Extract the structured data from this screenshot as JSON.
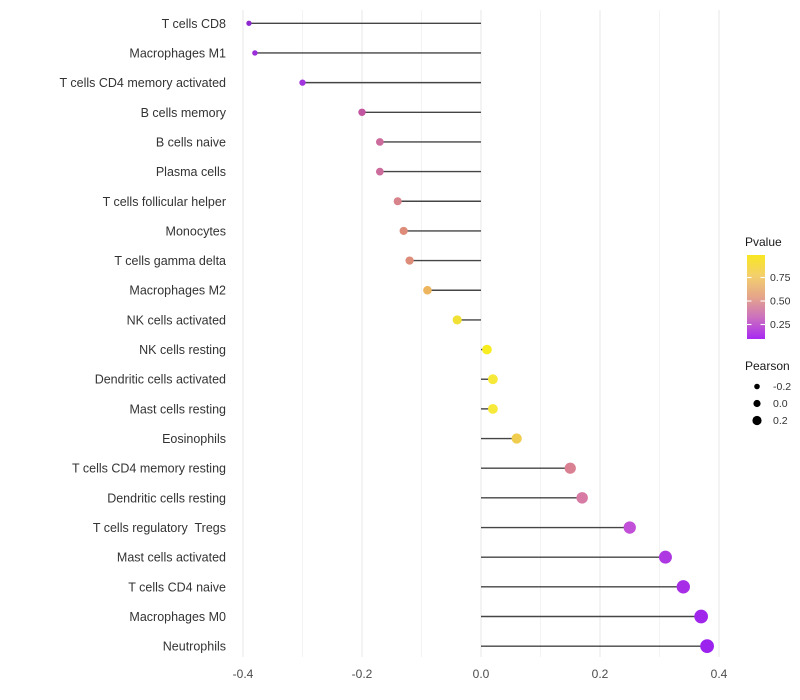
{
  "chart_data": {
    "type": "scatter",
    "variant": "lollipop",
    "orientation": "horizontal",
    "title": "",
    "xlabel": "",
    "ylabel": "",
    "xlim": [
      -0.45,
      0.44
    ],
    "x_ticks": [
      -0.4,
      -0.2,
      0.0,
      0.2,
      0.4
    ],
    "x_tick_labels": [
      "-0.4",
      "-0.2",
      "0.0",
      "0.2",
      "0.4"
    ],
    "x_minor_step": 0.1,
    "grid": true,
    "points": [
      {
        "label": "T cells CD8",
        "pearson": -0.39,
        "color": "#8f28cf"
      },
      {
        "label": "Macrophages M1",
        "pearson": -0.38,
        "color": "#9a2ed8"
      },
      {
        "label": "T cells CD4 memory activated",
        "pearson": -0.3,
        "color": "#a335de"
      },
      {
        "label": "B cells memory",
        "pearson": -0.2,
        "color": "#c2559f"
      },
      {
        "label": "B cells naive",
        "pearson": -0.17,
        "color": "#cc6c9c"
      },
      {
        "label": "Plasma cells",
        "pearson": -0.17,
        "color": "#cc6c9c"
      },
      {
        "label": "T cells follicular helper",
        "pearson": -0.14,
        "color": "#d8828b"
      },
      {
        "label": "Monocytes",
        "pearson": -0.13,
        "color": "#dc8c79"
      },
      {
        "label": "T cells gamma delta",
        "pearson": -0.12,
        "color": "#dc8c79"
      },
      {
        "label": "Macrophages M2",
        "pearson": -0.09,
        "color": "#edb55e"
      },
      {
        "label": "NK cells activated",
        "pearson": -0.04,
        "color": "#f2e135"
      },
      {
        "label": "NK cells resting",
        "pearson": 0.01,
        "color": "#f8ed1e"
      },
      {
        "label": "Dendritic cells activated",
        "pearson": 0.02,
        "color": "#f7e93a"
      },
      {
        "label": "Mast cells resting",
        "pearson": 0.02,
        "color": "#f7e93a"
      },
      {
        "label": "Eosinophils",
        "pearson": 0.06,
        "color": "#f0cd4e"
      },
      {
        "label": "T cells CD4 memory resting",
        "pearson": 0.15,
        "color": "#da8093"
      },
      {
        "label": "Dendritic cells resting",
        "pearson": 0.17,
        "color": "#d77ba5"
      },
      {
        "label": "T cells regulatory  Tregs",
        "pearson": 0.25,
        "color": "#c24fd8"
      },
      {
        "label": "Mast cells activated",
        "pearson": 0.31,
        "color": "#ae38e2"
      },
      {
        "label": "T cells CD4 naive",
        "pearson": 0.34,
        "color": "#a72ee6"
      },
      {
        "label": "Macrophages M0",
        "pearson": 0.37,
        "color": "#a026eb"
      },
      {
        "label": "Neutrophils",
        "pearson": 0.38,
        "color": "#9c22ee"
      }
    ],
    "legend_pvalue": {
      "title": "Pvalue",
      "tick_labels": [
        "0.75",
        "0.50",
        "0.25"
      ],
      "gradient_top_to_bottom": [
        "#f9e721",
        "#f3cf6d",
        "#e5a58a",
        "#cb6fc0",
        "#a828f2"
      ]
    },
    "legend_pearson": {
      "title": "Pearson",
      "items": [
        {
          "label": "-0.2",
          "diameter": 5.6
        },
        {
          "label": "0.0",
          "diameter": 7.2
        },
        {
          "label": "0.2",
          "diameter": 9.2
        }
      ],
      "dot_color": "#000000"
    }
  },
  "style_colors": {
    "background": "#ffffff",
    "grid_major": "#e7e7e7",
    "grid_minor": "#f3f3f3",
    "stem": "#454545",
    "axis_text": "#4d4d4d",
    "category_text": "#333333",
    "colorbar_tick": "#ffffff"
  }
}
